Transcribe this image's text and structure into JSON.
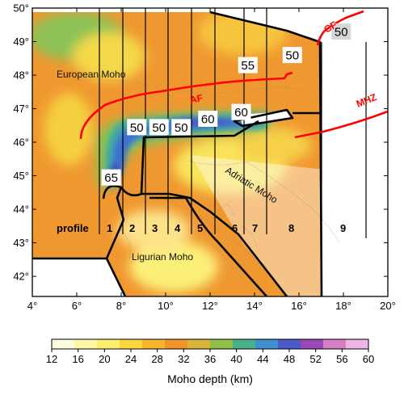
{
  "map": {
    "lon_ticks": [
      "4°",
      "6°",
      "8°",
      "10°",
      "12°",
      "14°",
      "16°",
      "18°",
      "20°"
    ],
    "lat_ticks": [
      "42°",
      "43°",
      "44°",
      "45°",
      "46°",
      "47°",
      "48°",
      "49°",
      "50°"
    ],
    "region_labels": {
      "european": "European Moho",
      "ligurian": "Ligurian Moho",
      "adriatic": "Adriatic  Moho"
    },
    "faults": {
      "af": "AF",
      "cf": "CF",
      "mhz": "MHZ"
    },
    "depth_labels": [
      {
        "text": "50",
        "lon": 15.7,
        "lat": 48.6
      },
      {
        "text": "55",
        "lon": 13.7,
        "lat": 48.3
      },
      {
        "text": "60",
        "lon": 13.4,
        "lat": 46.9
      },
      {
        "text": "60",
        "lon": 11.9,
        "lat": 46.7
      },
      {
        "text": "50",
        "lon": 10.7,
        "lat": 46.45
      },
      {
        "text": "50",
        "lon": 9.7,
        "lat": 46.45
      },
      {
        "text": "50",
        "lon": 8.7,
        "lat": 46.45
      },
      {
        "text": "65",
        "lon": 7.55,
        "lat": 44.95
      },
      {
        "text": "50",
        "lon": 17.9,
        "lat": 49.3
      }
    ],
    "profile_word": "profile",
    "profile_numbers": [
      "1",
      "2",
      "3",
      "4",
      "5",
      "6",
      "7",
      "8",
      "9"
    ]
  },
  "colorbar": {
    "ticks": [
      "12",
      "16",
      "20",
      "24",
      "28",
      "32",
      "36",
      "40",
      "44",
      "48",
      "52",
      "56",
      "60"
    ],
    "label": "Moho depth (km)",
    "colors": [
      "#fffde0",
      "#fff7a5",
      "#fbef6e",
      "#fbd73f",
      "#f7b52e",
      "#f0952a",
      "#d9b33a",
      "#90c04c",
      "#49b08a",
      "#3f8ed0",
      "#4c5ac8",
      "#9a47b8",
      "#d47ec4",
      "#ebb6e4"
    ]
  }
}
